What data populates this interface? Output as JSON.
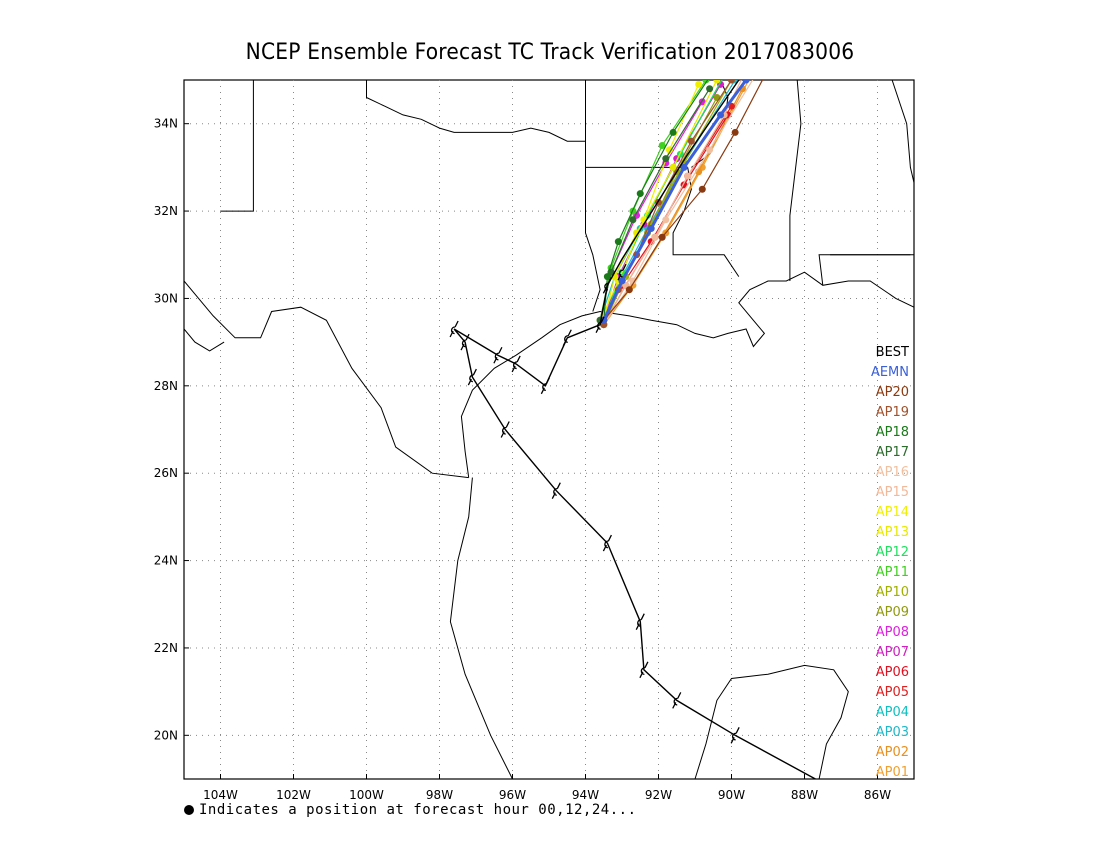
{
  "title": "NCEP Ensemble Forecast TC Track Verification 2017083006",
  "footnote": "Indicates a position at forecast hour 00,12,24...",
  "map": {
    "lon_range": [
      -105,
      -85
    ],
    "lat_range": [
      19,
      35
    ],
    "x_ticks": [
      "104W",
      "102W",
      "100W",
      "98W",
      "96W",
      "94W",
      "92W",
      "90W",
      "88W",
      "86W"
    ],
    "y_ticks": [
      "20N",
      "22N",
      "24N",
      "26N",
      "28N",
      "30N",
      "32N",
      "34N"
    ]
  },
  "legend": [
    {
      "name": "BEST",
      "color": "#000000"
    },
    {
      "name": "AEMN",
      "color": "#3a5fd8"
    },
    {
      "name": "AP20",
      "color": "#8a3a10"
    },
    {
      "name": "AP19",
      "color": "#a0522d"
    },
    {
      "name": "AP18",
      "color": "#1a7a1a"
    },
    {
      "name": "AP17",
      "color": "#2e6b2e"
    },
    {
      "name": "AP16",
      "color": "#f0c0a0"
    },
    {
      "name": "AP15",
      "color": "#f2b89a"
    },
    {
      "name": "AP14",
      "color": "#f0f000"
    },
    {
      "name": "AP13",
      "color": "#e8e800"
    },
    {
      "name": "AP12",
      "color": "#20e060"
    },
    {
      "name": "AP11",
      "color": "#40d020"
    },
    {
      "name": "AP10",
      "color": "#a0b000"
    },
    {
      "name": "AP09",
      "color": "#909a10"
    },
    {
      "name": "AP08",
      "color": "#e020e0"
    },
    {
      "name": "AP07",
      "color": "#d020c0"
    },
    {
      "name": "AP06",
      "color": "#e01020"
    },
    {
      "name": "AP05",
      "color": "#e02020"
    },
    {
      "name": "AP04",
      "color": "#10c0c0"
    },
    {
      "name": "AP03",
      "color": "#20b8c8"
    },
    {
      "name": "AP02",
      "color": "#e89020"
    },
    {
      "name": "AP01",
      "color": "#f0a030"
    }
  ],
  "best_track": [
    [
      -87.7,
      19.0
    ],
    [
      -89.9,
      20.0
    ],
    [
      -91.5,
      20.8
    ],
    [
      -92.4,
      21.5
    ],
    [
      -92.5,
      22.6
    ],
    [
      -93.4,
      24.4
    ],
    [
      -94.8,
      25.6
    ],
    [
      -96.2,
      27.0
    ],
    [
      -97.1,
      28.2
    ],
    [
      -97.3,
      29.0
    ],
    [
      -97.6,
      29.3
    ],
    [
      -96.4,
      28.7
    ],
    [
      -95.9,
      28.5
    ],
    [
      -95.1,
      28.0
    ],
    [
      -94.5,
      29.1
    ],
    [
      -93.6,
      29.4
    ],
    [
      -93.4,
      30.3
    ],
    [
      -93.0,
      30.9
    ],
    [
      -91.2,
      33.3
    ],
    [
      -89.8,
      35.0
    ]
  ],
  "best_track_symbols": [
    [
      -89.9,
      20.0
    ],
    [
      -91.5,
      20.8
    ],
    [
      -92.4,
      21.5
    ],
    [
      -92.5,
      22.6
    ],
    [
      -93.4,
      24.4
    ],
    [
      -94.8,
      25.6
    ],
    [
      -96.2,
      27.0
    ],
    [
      -97.1,
      28.2
    ],
    [
      -97.3,
      29.0
    ],
    [
      -97.6,
      29.3
    ],
    [
      -96.4,
      28.7
    ],
    [
      -95.9,
      28.5
    ],
    [
      -95.1,
      28.0
    ],
    [
      -94.5,
      29.1
    ],
    [
      -93.6,
      29.4
    ],
    [
      -93.4,
      30.3
    ],
    [
      -93.0,
      30.6
    ]
  ],
  "ensemble_tracks": [
    {
      "name": "AEMN",
      "pts": [
        [
          -93.5,
          29.5
        ],
        [
          -93.0,
          30.4
        ],
        [
          -92.2,
          31.6
        ],
        [
          -91.3,
          33.0
        ],
        [
          -90.3,
          34.2
        ],
        [
          -89.6,
          35.0
        ]
      ]
    },
    {
      "name": "AP20",
      "pts": [
        [
          -93.5,
          29.5
        ],
        [
          -92.8,
          30.2
        ],
        [
          -91.9,
          31.4
        ],
        [
          -90.8,
          32.5
        ],
        [
          -89.9,
          33.8
        ],
        [
          -88.9,
          35.4
        ]
      ]
    },
    {
      "name": "AP19",
      "pts": [
        [
          -93.5,
          29.4
        ],
        [
          -93.1,
          30.2
        ],
        [
          -92.6,
          31.0
        ],
        [
          -92.0,
          32.2
        ],
        [
          -91.1,
          33.6
        ],
        [
          -90.0,
          35.0
        ]
      ]
    },
    {
      "name": "AP18",
      "pts": [
        [
          -93.5,
          29.5
        ],
        [
          -93.4,
          30.5
        ],
        [
          -93.1,
          31.3
        ],
        [
          -92.5,
          32.4
        ],
        [
          -91.6,
          33.8
        ],
        [
          -90.5,
          35.2
        ]
      ]
    },
    {
      "name": "AP17",
      "pts": [
        [
          -93.6,
          29.5
        ],
        [
          -93.3,
          30.6
        ],
        [
          -92.7,
          31.8
        ],
        [
          -91.8,
          33.2
        ],
        [
          -90.6,
          34.8
        ]
      ]
    },
    {
      "name": "AP16",
      "pts": [
        [
          -93.5,
          29.4
        ],
        [
          -92.7,
          30.4
        ],
        [
          -91.8,
          31.8
        ],
        [
          -90.6,
          33.4
        ],
        [
          -89.2,
          35.3
        ]
      ]
    },
    {
      "name": "AP15",
      "pts": [
        [
          -93.5,
          29.4
        ],
        [
          -92.9,
          30.3
        ],
        [
          -92.1,
          31.4
        ],
        [
          -91.2,
          32.8
        ],
        [
          -90.2,
          34.2
        ],
        [
          -89.5,
          35.4
        ]
      ]
    },
    {
      "name": "AP14",
      "pts": [
        [
          -93.6,
          29.5
        ],
        [
          -93.1,
          30.4
        ],
        [
          -92.4,
          31.8
        ],
        [
          -91.7,
          33.4
        ],
        [
          -90.9,
          34.9
        ]
      ]
    },
    {
      "name": "AP13",
      "pts": [
        [
          -93.5,
          29.5
        ],
        [
          -93.2,
          30.5
        ],
        [
          -92.6,
          31.5
        ],
        [
          -91.6,
          33.0
        ],
        [
          -90.4,
          35.0
        ]
      ]
    },
    {
      "name": "AP12",
      "pts": [
        [
          -93.5,
          29.5
        ],
        [
          -93.0,
          30.6
        ],
        [
          -92.3,
          31.9
        ],
        [
          -91.4,
          33.3
        ],
        [
          -90.2,
          35.1
        ]
      ]
    },
    {
      "name": "AP11",
      "pts": [
        [
          -93.6,
          29.5
        ],
        [
          -93.3,
          30.7
        ],
        [
          -92.7,
          32.0
        ],
        [
          -91.9,
          33.5
        ],
        [
          -90.7,
          35.0
        ]
      ]
    },
    {
      "name": "AP10",
      "pts": [
        [
          -93.5,
          29.4
        ],
        [
          -92.9,
          30.5
        ],
        [
          -92.2,
          31.7
        ],
        [
          -91.3,
          33.1
        ],
        [
          -90.0,
          35.0
        ]
      ]
    },
    {
      "name": "AP09",
      "pts": [
        [
          -93.5,
          29.4
        ],
        [
          -93.0,
          30.4
        ],
        [
          -92.3,
          31.5
        ],
        [
          -91.5,
          32.9
        ],
        [
          -90.4,
          34.6
        ]
      ]
    },
    {
      "name": "AP08",
      "pts": [
        [
          -93.6,
          29.5
        ],
        [
          -93.3,
          30.6
        ],
        [
          -92.6,
          31.9
        ],
        [
          -91.8,
          33.1
        ],
        [
          -90.8,
          34.5
        ]
      ]
    },
    {
      "name": "AP07",
      "pts": [
        [
          -93.5,
          29.5
        ],
        [
          -93.1,
          30.5
        ],
        [
          -92.4,
          31.7
        ],
        [
          -91.5,
          33.2
        ],
        [
          -90.3,
          34.9
        ]
      ]
    },
    {
      "name": "AP06",
      "pts": [
        [
          -93.5,
          29.5
        ],
        [
          -93.0,
          30.3
        ],
        [
          -92.2,
          31.3
        ],
        [
          -91.3,
          32.6
        ],
        [
          -90.1,
          34.2
        ]
      ]
    },
    {
      "name": "AP05",
      "pts": [
        [
          -93.5,
          29.4
        ],
        [
          -92.9,
          30.3
        ],
        [
          -92.1,
          31.4
        ],
        [
          -91.2,
          32.8
        ],
        [
          -90.0,
          34.4
        ]
      ]
    },
    {
      "name": "AP04",
      "pts": [
        [
          -93.6,
          29.5
        ],
        [
          -93.2,
          30.5
        ],
        [
          -92.5,
          31.6
        ],
        [
          -91.6,
          33.0
        ],
        [
          -90.2,
          35.1
        ]
      ]
    },
    {
      "name": "AP03",
      "pts": [
        [
          -93.5,
          29.5
        ],
        [
          -93.0,
          30.5
        ],
        [
          -92.3,
          31.6
        ],
        [
          -91.3,
          33.1
        ],
        [
          -89.9,
          35.0
        ]
      ]
    },
    {
      "name": "AP02",
      "pts": [
        [
          -93.5,
          29.4
        ],
        [
          -92.8,
          30.2
        ],
        [
          -91.9,
          31.4
        ],
        [
          -90.9,
          32.9
        ],
        [
          -89.7,
          34.8
        ]
      ]
    },
    {
      "name": "AP01",
      "pts": [
        [
          -93.5,
          29.4
        ],
        [
          -92.7,
          30.3
        ],
        [
          -91.8,
          31.5
        ],
        [
          -90.8,
          33.0
        ],
        [
          -89.4,
          35.2
        ]
      ]
    }
  ],
  "coastlines": [
    [
      [
        -105,
        30.4
      ],
      [
        -104.6,
        30.0
      ],
      [
        -104.2,
        29.6
      ],
      [
        -103.6,
        29.1
      ],
      [
        -102.9,
        29.1
      ],
      [
        -102.6,
        29.7
      ],
      [
        -101.8,
        29.8
      ],
      [
        -101.1,
        29.5
      ],
      [
        -100.4,
        28.4
      ],
      [
        -99.6,
        27.5
      ],
      [
        -99.2,
        26.6
      ],
      [
        -98.2,
        26.0
      ],
      [
        -97.2,
        25.9
      ]
    ],
    [
      [
        -105,
        29.3
      ],
      [
        -104.7,
        29.0
      ],
      [
        -104.3,
        28.8
      ],
      [
        -103.9,
        29.0
      ]
    ],
    [
      [
        -97.1,
        25.9
      ],
      [
        -97.2,
        25.0
      ],
      [
        -97.5,
        24.0
      ],
      [
        -97.7,
        22.6
      ],
      [
        -97.3,
        21.4
      ],
      [
        -96.6,
        20.0
      ],
      [
        -96.0,
        19.0
      ]
    ],
    [
      [
        -97.2,
        25.9
      ],
      [
        -97.3,
        26.5
      ],
      [
        -97.4,
        27.3
      ],
      [
        -97.1,
        27.9
      ],
      [
        -96.5,
        28.4
      ],
      [
        -95.9,
        28.7
      ],
      [
        -95.2,
        29.1
      ],
      [
        -94.7,
        29.4
      ],
      [
        -94.1,
        29.6
      ],
      [
        -93.6,
        29.7
      ],
      [
        -92.8,
        29.6
      ],
      [
        -92.2,
        29.5
      ],
      [
        -91.5,
        29.4
      ],
      [
        -91.0,
        29.2
      ],
      [
        -90.5,
        29.1
      ],
      [
        -90.1,
        29.2
      ],
      [
        -89.6,
        29.3
      ],
      [
        -89.4,
        28.9
      ],
      [
        -89.1,
        29.2
      ],
      [
        -89.4,
        29.5
      ],
      [
        -89.8,
        29.9
      ],
      [
        -89.5,
        30.2
      ],
      [
        -89.0,
        30.4
      ],
      [
        -88.5,
        30.4
      ],
      [
        -88.0,
        30.6
      ],
      [
        -87.5,
        30.3
      ],
      [
        -86.8,
        30.4
      ],
      [
        -86.2,
        30.4
      ],
      [
        -85.5,
        30.0
      ],
      [
        -85.0,
        29.8
      ]
    ],
    [
      [
        -91.0,
        19.0
      ],
      [
        -90.7,
        19.8
      ],
      [
        -90.4,
        20.8
      ],
      [
        -90.0,
        21.3
      ],
      [
        -89.0,
        21.4
      ],
      [
        -88.0,
        21.6
      ],
      [
        -87.2,
        21.5
      ],
      [
        -86.8,
        21.0
      ],
      [
        -87.0,
        20.4
      ],
      [
        -87.4,
        19.8
      ],
      [
        -87.6,
        19.0
      ]
    ],
    [
      [
        -94.6,
        19.0
      ],
      [
        -94.0,
        18.6
      ]
    ],
    [
      [
        -104,
        32.0
      ],
      [
        -103.1,
        32.0
      ],
      [
        -103.1,
        35
      ]
    ],
    [
      [
        -100.0,
        35
      ],
      [
        -100.0,
        34.6
      ],
      [
        -99.5,
        34.4
      ],
      [
        -99.0,
        34.2
      ],
      [
        -98.5,
        34.1
      ],
      [
        -98.0,
        33.9
      ],
      [
        -97.6,
        33.8
      ],
      [
        -97.1,
        33.8
      ],
      [
        -96.6,
        33.8
      ],
      [
        -96.0,
        33.8
      ],
      [
        -95.5,
        33.9
      ],
      [
        -95.0,
        33.8
      ],
      [
        -94.5,
        33.6
      ],
      [
        -94.0,
        33.6
      ]
    ],
    [
      [
        -94.0,
        35
      ],
      [
        -94.0,
        33.0
      ],
      [
        -91.2,
        33.0
      ]
    ],
    [
      [
        -94.0,
        33.0
      ],
      [
        -94.0,
        31.5
      ],
      [
        -93.8,
        31.0
      ],
      [
        -93.6,
        30.2
      ],
      [
        -93.8,
        29.7
      ]
    ],
    [
      [
        -91.2,
        33.0
      ],
      [
        -91.1,
        32.5
      ],
      [
        -91.3,
        32.0
      ],
      [
        -91.6,
        31.5
      ],
      [
        -91.6,
        31.0
      ],
      [
        -90.2,
        31.0
      ],
      [
        -89.8,
        30.5
      ]
    ],
    [
      [
        -90.3,
        35
      ],
      [
        -90.1,
        34.6
      ],
      [
        -90.2,
        34.0
      ],
      [
        -90.6,
        33.3
      ],
      [
        -91.1,
        33.0
      ]
    ],
    [
      [
        -88.2,
        35
      ],
      [
        -88.1,
        34.0
      ],
      [
        -88.4,
        31.9
      ],
      [
        -88.4,
        30.4
      ]
    ],
    [
      [
        -85.1,
        31.0
      ],
      [
        -87.6,
        31.0
      ],
      [
        -87.5,
        30.3
      ]
    ],
    [
      [
        -87.3,
        31.0
      ],
      [
        -86.2,
        31.0
      ],
      [
        -85.0,
        31.0
      ]
    ],
    [
      [
        -85.6,
        35
      ],
      [
        -85.2,
        34.0
      ],
      [
        -85.1,
        33.0
      ],
      [
        -84.9,
        32.3
      ]
    ]
  ]
}
